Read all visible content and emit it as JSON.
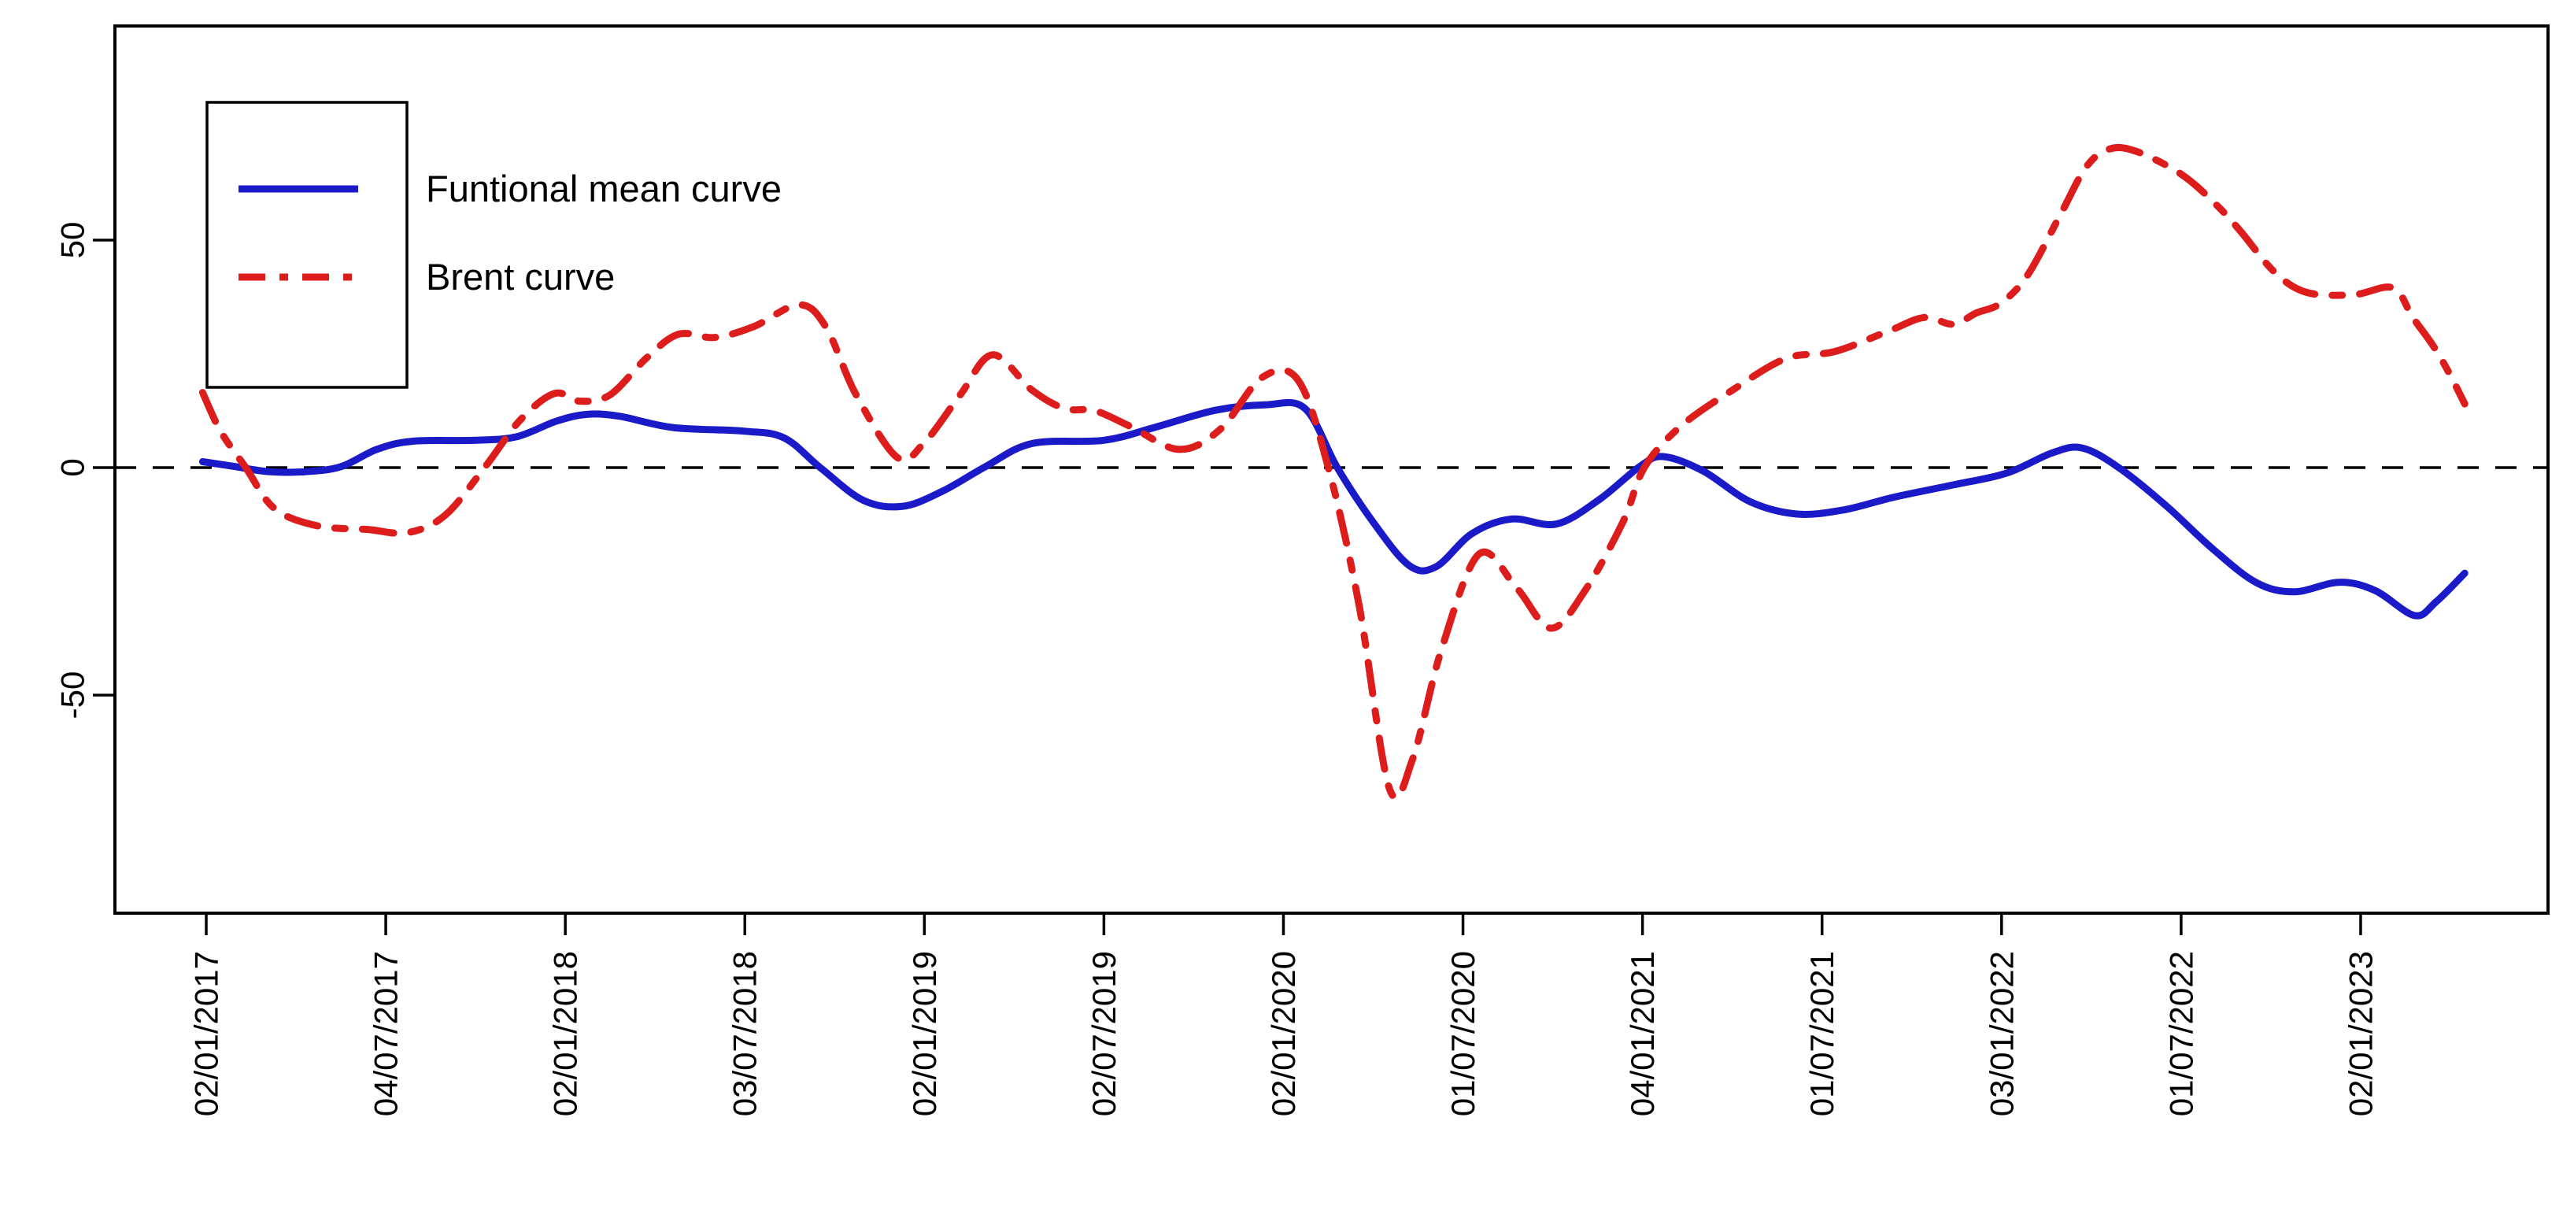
{
  "chart_data": {
    "type": "line",
    "title": "",
    "xlabel": "",
    "ylabel": "",
    "grid": false,
    "background": "#ffffff",
    "axis_color": "#000000",
    "x_tick_labels": [
      "02/01/2017",
      "04/07/2017",
      "02/01/2018",
      "03/07/2018",
      "02/01/2019",
      "02/07/2019",
      "02/01/2020",
      "01/07/2020",
      "04/01/2021",
      "01/07/2021",
      "03/01/2022",
      "01/07/2022",
      "02/01/2023"
    ],
    "y_ticks": [
      {
        "value": -50,
        "label": "-50"
      },
      {
        "value": 0,
        "label": "0"
      },
      {
        "value": 50,
        "label": "50"
      }
    ],
    "ylim": [
      -98,
      98
    ],
    "xlim_in_tick_units": [
      -0.51,
      13.04
    ],
    "reference_line": {
      "value": 0,
      "style": "dashed",
      "color": "#000000"
    },
    "legend": {
      "position": "top-left",
      "border": true
    },
    "series": [
      {
        "name": "Funtional mean curve",
        "color": "#1a1ac8",
        "style": "solid",
        "points": [
          [
            -0.02,
            1.3
          ],
          [
            0.15,
            0.3
          ],
          [
            0.35,
            -0.9
          ],
          [
            0.55,
            -0.9
          ],
          [
            0.75,
            0.2
          ],
          [
            0.95,
            4
          ],
          [
            1.15,
            5.8
          ],
          [
            1.5,
            6
          ],
          [
            1.73,
            6.8
          ],
          [
            1.95,
            10.2
          ],
          [
            2.12,
            11.7
          ],
          [
            2.3,
            11.3
          ],
          [
            2.6,
            8.8
          ],
          [
            3.0,
            8
          ],
          [
            3.22,
            6.5
          ],
          [
            3.42,
            0
          ],
          [
            3.66,
            -7.2
          ],
          [
            3.88,
            -8.5
          ],
          [
            4.1,
            -5.2
          ],
          [
            4.34,
            0.2
          ],
          [
            4.6,
            5.3
          ],
          [
            5.0,
            6
          ],
          [
            5.28,
            8.8
          ],
          [
            5.62,
            12.6
          ],
          [
            5.9,
            13.8
          ],
          [
            6.12,
            13
          ],
          [
            6.3,
            0
          ],
          [
            6.5,
            -12
          ],
          [
            6.7,
            -21.5
          ],
          [
            6.85,
            -21.8
          ],
          [
            7.05,
            -14.5
          ],
          [
            7.27,
            -11.3
          ],
          [
            7.52,
            -12.4
          ],
          [
            7.76,
            -7
          ],
          [
            7.99,
            0.4
          ],
          [
            8.12,
            2.4
          ],
          [
            8.34,
            -0.8
          ],
          [
            8.6,
            -7.5
          ],
          [
            8.86,
            -10.2
          ],
          [
            9.12,
            -9.3
          ],
          [
            9.4,
            -6.5
          ],
          [
            9.73,
            -3.8
          ],
          [
            10.03,
            -1.2
          ],
          [
            10.28,
            3.2
          ],
          [
            10.45,
            4.3
          ],
          [
            10.66,
            -0.2
          ],
          [
            10.92,
            -8.5
          ],
          [
            11.18,
            -18
          ],
          [
            11.42,
            -25.3
          ],
          [
            11.63,
            -27.3
          ],
          [
            11.88,
            -25.2
          ],
          [
            12.08,
            -27
          ],
          [
            12.3,
            -32.5
          ],
          [
            12.42,
            -29.5
          ],
          [
            12.58,
            -23.2
          ]
        ]
      },
      {
        "name": "Brent curve",
        "color": "#dd1c1c",
        "style": "dashdot",
        "points": [
          [
            -0.02,
            16.5
          ],
          [
            0.08,
            8
          ],
          [
            0.22,
            0
          ],
          [
            0.38,
            -9
          ],
          [
            0.62,
            -12.8
          ],
          [
            0.9,
            -13.6
          ],
          [
            1.12,
            -14.3
          ],
          [
            1.33,
            -10.5
          ],
          [
            1.55,
            0
          ],
          [
            1.75,
            10.5
          ],
          [
            1.94,
            16.3
          ],
          [
            2.08,
            14.6
          ],
          [
            2.25,
            16
          ],
          [
            2.45,
            24
          ],
          [
            2.63,
            29.3
          ],
          [
            2.83,
            28.6
          ],
          [
            3.05,
            31
          ],
          [
            3.3,
            35.8
          ],
          [
            3.45,
            31
          ],
          [
            3.62,
            16
          ],
          [
            3.85,
            2.2
          ],
          [
            4.0,
            5.5
          ],
          [
            4.2,
            16
          ],
          [
            4.38,
            24.8
          ],
          [
            4.6,
            17
          ],
          [
            4.78,
            13
          ],
          [
            4.95,
            12.5
          ],
          [
            5.15,
            9
          ],
          [
            5.42,
            4
          ],
          [
            5.65,
            8.5
          ],
          [
            5.88,
            19.8
          ],
          [
            6.08,
            19.3
          ],
          [
            6.25,
            0
          ],
          [
            6.42,
            -30
          ],
          [
            6.59,
            -70.5
          ],
          [
            6.72,
            -64
          ],
          [
            6.88,
            -40
          ],
          [
            7.09,
            -19
          ],
          [
            7.3,
            -26.5
          ],
          [
            7.49,
            -35.3
          ],
          [
            7.68,
            -27
          ],
          [
            7.89,
            -12
          ],
          [
            8.01,
            0
          ],
          [
            8.21,
            9
          ],
          [
            8.5,
            17
          ],
          [
            8.8,
            24
          ],
          [
            9.07,
            25.5
          ],
          [
            9.37,
            30
          ],
          [
            9.57,
            33
          ],
          [
            9.73,
            31.5
          ],
          [
            9.86,
            34
          ],
          [
            9.99,
            36
          ],
          [
            10.14,
            42
          ],
          [
            10.32,
            55
          ],
          [
            10.47,
            66
          ],
          [
            10.6,
            70
          ],
          [
            10.75,
            69.5
          ],
          [
            11.0,
            64.5
          ],
          [
            11.19,
            58
          ],
          [
            11.33,
            52
          ],
          [
            11.52,
            43
          ],
          [
            11.7,
            38.5
          ],
          [
            11.96,
            38
          ],
          [
            12.18,
            39.5
          ],
          [
            12.29,
            33
          ],
          [
            12.4,
            27
          ],
          [
            12.49,
            21
          ],
          [
            12.58,
            14
          ]
        ]
      }
    ]
  }
}
